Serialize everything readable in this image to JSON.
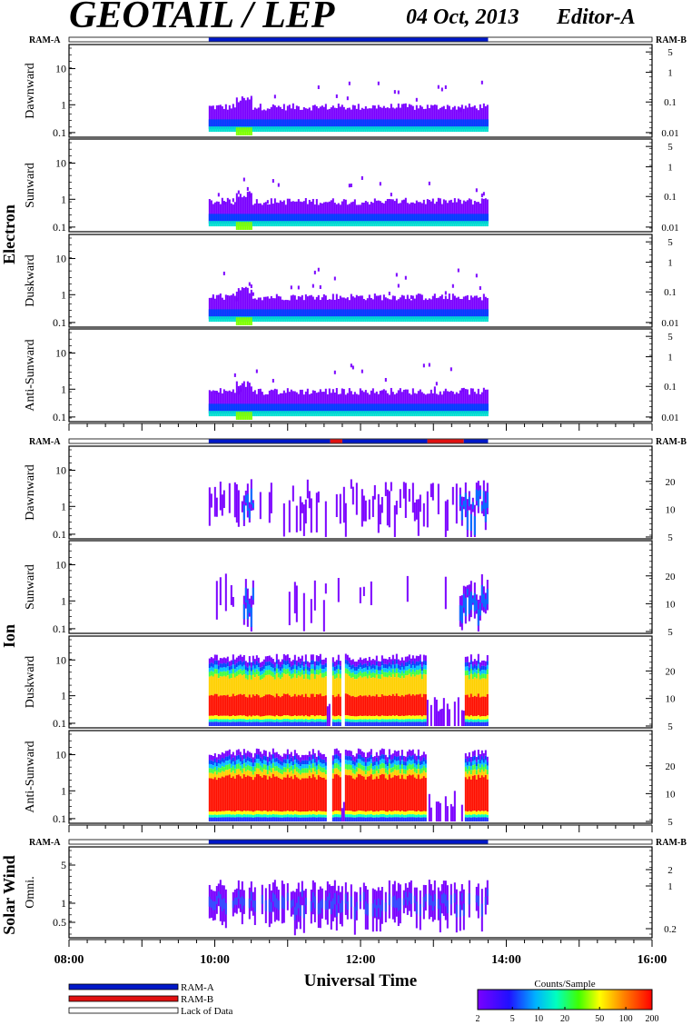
{
  "header": {
    "title": "GEOTAIL / LEP",
    "date": "04 Oct, 2013",
    "editor": "Editor-A"
  },
  "ram_labels": {
    "left": "RAM-A",
    "right": "RAM-B"
  },
  "section_labels": {
    "electron": "Electron",
    "ion": "Ion",
    "solar_wind": "Solar Wind"
  },
  "x_axis": {
    "title": "Universal Time",
    "ticks": [
      "08:00",
      "10:00",
      "12:00",
      "14:00",
      "16:00"
    ]
  },
  "legend": {
    "items": [
      {
        "label": "RAM-A",
        "color": "#0018c8"
      },
      {
        "label": "RAM-B",
        "color": "#e01010"
      },
      {
        "label": "Lack of Data",
        "color": "#ffffff"
      }
    ]
  },
  "colorbar": {
    "title": "Counts/Sample",
    "ticks": [
      "2",
      "5",
      "10",
      "20",
      "50",
      "100",
      "200"
    ]
  },
  "chart_data": {
    "type": "heatmap",
    "time_range": [
      "08:00",
      "16:00"
    ],
    "data_interval": [
      "09:55",
      "13:45"
    ],
    "colors": {
      "ram_a": "#0018c8",
      "ram_b": "#e01010"
    },
    "ram_status": {
      "electron": [
        {
          "from": "09:55",
          "to": "13:45",
          "state": "RAM-A"
        }
      ],
      "ion": [
        {
          "from": "09:55",
          "to": "11:35",
          "state": "RAM-A"
        },
        {
          "from": "11:35",
          "to": "11:45",
          "state": "RAM-B"
        },
        {
          "from": "11:45",
          "to": "12:55",
          "state": "RAM-A"
        },
        {
          "from": "12:55",
          "to": "13:25",
          "state": "RAM-B"
        },
        {
          "from": "13:25",
          "to": "13:45",
          "state": "RAM-A"
        }
      ],
      "solar_wind": [
        {
          "from": "09:55",
          "to": "13:45",
          "state": "RAM-A"
        }
      ]
    },
    "panels": [
      {
        "group": "electron",
        "name": "Dawnward",
        "left_ticks": [
          "10",
          "1",
          "0.1"
        ],
        "right_ticks": [
          "5",
          "1",
          "0.1",
          "0.01"
        ],
        "profile": "electron"
      },
      {
        "group": "electron",
        "name": "Sunward",
        "left_ticks": [
          "10",
          "1",
          "0.1"
        ],
        "right_ticks": [
          "5",
          "1",
          "0.1",
          "0.01"
        ],
        "profile": "electron"
      },
      {
        "group": "electron",
        "name": "Duskward",
        "left_ticks": [
          "10",
          "1",
          "0.1"
        ],
        "right_ticks": [
          "5",
          "1",
          "0.1",
          "0.01"
        ],
        "profile": "electron"
      },
      {
        "group": "electron",
        "name": "Anti-Sunward",
        "left_ticks": [
          "10",
          "1",
          "0.1"
        ],
        "right_ticks": [
          "5",
          "1",
          "0.1",
          "0.01"
        ],
        "profile": "electron"
      },
      {
        "group": "ion",
        "name": "Dawnward",
        "left_ticks": [
          "10",
          "1",
          "0.1"
        ],
        "right_ticks": [
          "20",
          "10",
          "5"
        ],
        "profile": "ion-sparse"
      },
      {
        "group": "ion",
        "name": "Sunward",
        "left_ticks": [
          "10",
          "1",
          "0.1"
        ],
        "right_ticks": [
          "20",
          "10",
          "5"
        ],
        "profile": "ion-veryspare"
      },
      {
        "group": "ion",
        "name": "Duskward",
        "left_ticks": [
          "10",
          "1",
          "0.1"
        ],
        "right_ticks": [
          "20",
          "10",
          "5"
        ],
        "profile": "ion-dense"
      },
      {
        "group": "ion",
        "name": "Anti-Sunward",
        "left_ticks": [
          "10",
          "1",
          "0.1"
        ],
        "right_ticks": [
          "20",
          "10",
          "5"
        ],
        "profile": "ion-dense2"
      },
      {
        "group": "solar_wind",
        "name": "Omni.",
        "left_ticks": [
          "5",
          "1",
          "0.5"
        ],
        "right_ticks": [
          "2",
          "1",
          "0.2"
        ],
        "profile": "sw"
      }
    ]
  }
}
